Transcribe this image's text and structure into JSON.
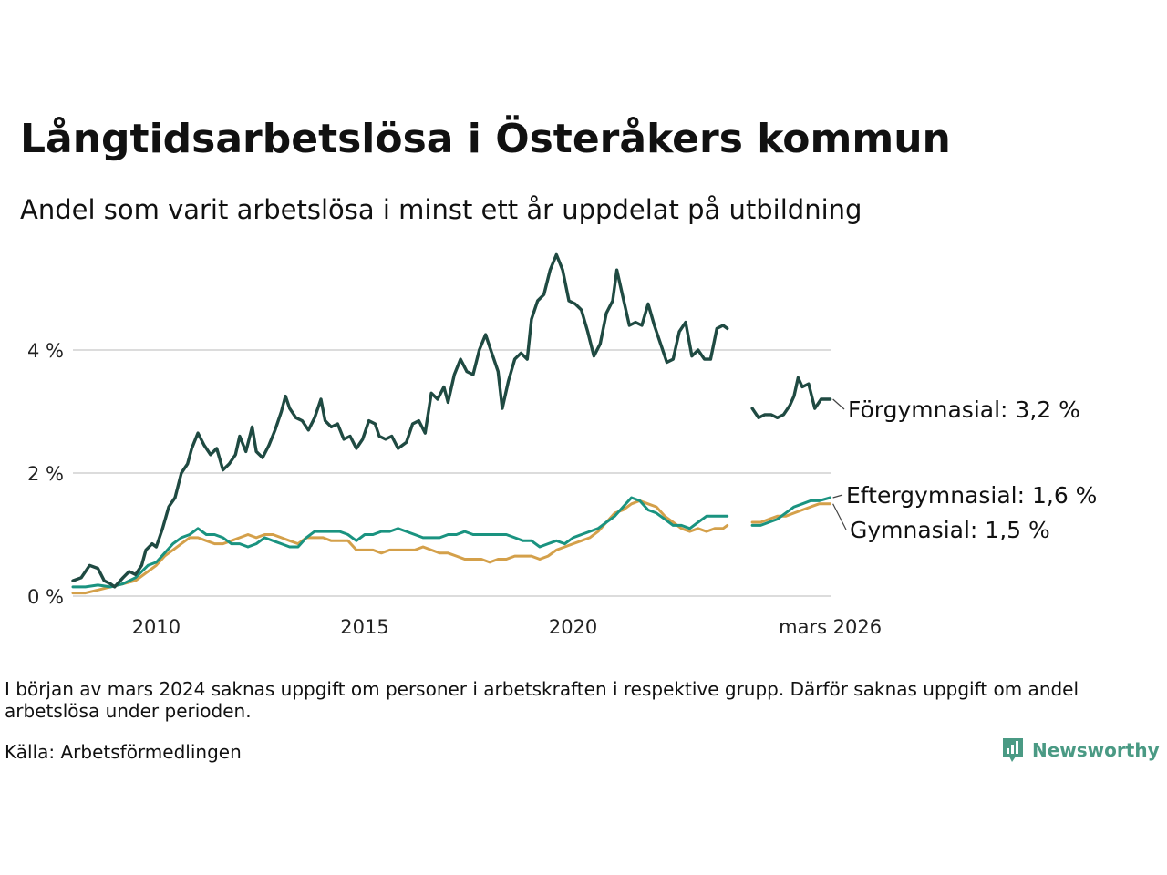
{
  "header": {
    "title": "Långtidsarbetslösa i Österåkers kommun",
    "subtitle": "Andel som varit arbetslösa i minst ett år uppdelat på utbildning"
  },
  "footer": {
    "note": "I början av mars 2024 saknas uppgift om personer i arbetskraften i respektive grupp. Därför saknas uppgift om andel arbetslösa under perioden.",
    "source": "Källa: Arbetsförmedlingen",
    "brand": "Newsworthy"
  },
  "colors": {
    "forgymnasial": "#1f4a42",
    "eftergymnasial": "#1a9380",
    "gymnasial": "#d4a04a",
    "grid": "#dcdcdc",
    "brand": "#4a9a84"
  },
  "chart_data": {
    "type": "line",
    "title": "Långtidsarbetslösa i Österåkers kommun",
    "xlabel": "",
    "ylabel": "",
    "xlim": [
      2008.0,
      2026.2
    ],
    "ylim": [
      0,
      5.6
    ],
    "y_ticks": [
      0,
      2,
      4
    ],
    "y_tick_labels": [
      "0 %",
      "2 %",
      "4 %"
    ],
    "x_ticks": [
      2010,
      2015,
      2020,
      2026.17
    ],
    "x_tick_labels": [
      "2010",
      "2015",
      "2020",
      "mars 2026"
    ],
    "grid": true,
    "gap": [
      2023.75,
      2024.3
    ],
    "series": [
      {
        "name": "Förgymnasial",
        "end_label": "Förgymnasial: 3,2 %",
        "color_key": "forgymnasial",
        "points": [
          [
            2008.0,
            0.25
          ],
          [
            2008.2,
            0.3
          ],
          [
            2008.4,
            0.5
          ],
          [
            2008.6,
            0.45
          ],
          [
            2008.75,
            0.25
          ],
          [
            2008.9,
            0.2
          ],
          [
            2009.0,
            0.15
          ],
          [
            2009.2,
            0.3
          ],
          [
            2009.35,
            0.4
          ],
          [
            2009.5,
            0.35
          ],
          [
            2009.65,
            0.5
          ],
          [
            2009.75,
            0.75
          ],
          [
            2009.9,
            0.85
          ],
          [
            2010.0,
            0.8
          ],
          [
            2010.15,
            1.1
          ],
          [
            2010.3,
            1.45
          ],
          [
            2010.45,
            1.6
          ],
          [
            2010.6,
            2.0
          ],
          [
            2010.75,
            2.15
          ],
          [
            2010.85,
            2.4
          ],
          [
            2011.0,
            2.65
          ],
          [
            2011.15,
            2.45
          ],
          [
            2011.3,
            2.3
          ],
          [
            2011.45,
            2.4
          ],
          [
            2011.6,
            2.05
          ],
          [
            2011.75,
            2.15
          ],
          [
            2011.9,
            2.3
          ],
          [
            2012.0,
            2.6
          ],
          [
            2012.15,
            2.35
          ],
          [
            2012.3,
            2.75
          ],
          [
            2012.4,
            2.35
          ],
          [
            2012.55,
            2.25
          ],
          [
            2012.7,
            2.45
          ],
          [
            2012.85,
            2.7
          ],
          [
            2013.0,
            3.0
          ],
          [
            2013.1,
            3.25
          ],
          [
            2013.2,
            3.05
          ],
          [
            2013.35,
            2.9
          ],
          [
            2013.5,
            2.85
          ],
          [
            2013.65,
            2.7
          ],
          [
            2013.8,
            2.9
          ],
          [
            2013.95,
            3.2
          ],
          [
            2014.05,
            2.85
          ],
          [
            2014.2,
            2.75
          ],
          [
            2014.35,
            2.8
          ],
          [
            2014.5,
            2.55
          ],
          [
            2014.65,
            2.6
          ],
          [
            2014.8,
            2.4
          ],
          [
            2014.95,
            2.55
          ],
          [
            2015.1,
            2.85
          ],
          [
            2015.25,
            2.8
          ],
          [
            2015.35,
            2.6
          ],
          [
            2015.5,
            2.55
          ],
          [
            2015.65,
            2.6
          ],
          [
            2015.8,
            2.4
          ],
          [
            2016.0,
            2.5
          ],
          [
            2016.15,
            2.8
          ],
          [
            2016.3,
            2.85
          ],
          [
            2016.45,
            2.65
          ],
          [
            2016.6,
            3.3
          ],
          [
            2016.75,
            3.2
          ],
          [
            2016.9,
            3.4
          ],
          [
            2017.0,
            3.15
          ],
          [
            2017.15,
            3.6
          ],
          [
            2017.3,
            3.85
          ],
          [
            2017.45,
            3.65
          ],
          [
            2017.6,
            3.6
          ],
          [
            2017.75,
            4.0
          ],
          [
            2017.9,
            4.25
          ],
          [
            2018.0,
            4.05
          ],
          [
            2018.1,
            3.85
          ],
          [
            2018.2,
            3.65
          ],
          [
            2018.3,
            3.05
          ],
          [
            2018.45,
            3.5
          ],
          [
            2018.6,
            3.85
          ],
          [
            2018.75,
            3.95
          ],
          [
            2018.9,
            3.85
          ],
          [
            2019.0,
            4.5
          ],
          [
            2019.15,
            4.8
          ],
          [
            2019.3,
            4.9
          ],
          [
            2019.45,
            5.3
          ],
          [
            2019.6,
            5.55
          ],
          [
            2019.75,
            5.3
          ],
          [
            2019.9,
            4.8
          ],
          [
            2020.05,
            4.75
          ],
          [
            2020.2,
            4.65
          ],
          [
            2020.35,
            4.3
          ],
          [
            2020.5,
            3.9
          ],
          [
            2020.65,
            4.1
          ],
          [
            2020.8,
            4.6
          ],
          [
            2020.95,
            4.8
          ],
          [
            2021.05,
            5.3
          ],
          [
            2021.2,
            4.85
          ],
          [
            2021.35,
            4.4
          ],
          [
            2021.5,
            4.45
          ],
          [
            2021.65,
            4.4
          ],
          [
            2021.8,
            4.75
          ],
          [
            2021.95,
            4.4
          ],
          [
            2022.1,
            4.1
          ],
          [
            2022.25,
            3.8
          ],
          [
            2022.4,
            3.85
          ],
          [
            2022.55,
            4.3
          ],
          [
            2022.7,
            4.45
          ],
          [
            2022.85,
            3.9
          ],
          [
            2023.0,
            4.0
          ],
          [
            2023.15,
            3.85
          ],
          [
            2023.3,
            3.85
          ],
          [
            2023.45,
            4.35
          ],
          [
            2023.6,
            4.4
          ],
          [
            2023.7,
            4.35
          ],
          [
            2024.3,
            3.05
          ],
          [
            2024.45,
            2.9
          ],
          [
            2024.6,
            2.95
          ],
          [
            2024.75,
            2.95
          ],
          [
            2024.9,
            2.9
          ],
          [
            2025.05,
            2.95
          ],
          [
            2025.2,
            3.1
          ],
          [
            2025.3,
            3.25
          ],
          [
            2025.4,
            3.55
          ],
          [
            2025.5,
            3.4
          ],
          [
            2025.65,
            3.45
          ],
          [
            2025.8,
            3.05
          ],
          [
            2025.95,
            3.2
          ],
          [
            2026.17,
            3.2
          ]
        ]
      },
      {
        "name": "Eftergymnasial",
        "end_label": "Eftergymnasial: 1,6 %",
        "color_key": "eftergymnasial",
        "points": [
          [
            2008.0,
            0.15
          ],
          [
            2008.3,
            0.15
          ],
          [
            2008.6,
            0.18
          ],
          [
            2008.9,
            0.15
          ],
          [
            2009.2,
            0.2
          ],
          [
            2009.5,
            0.3
          ],
          [
            2009.8,
            0.5
          ],
          [
            2010.0,
            0.55
          ],
          [
            2010.2,
            0.7
          ],
          [
            2010.4,
            0.85
          ],
          [
            2010.6,
            0.95
          ],
          [
            2010.8,
            1.0
          ],
          [
            2011.0,
            1.1
          ],
          [
            2011.2,
            1.0
          ],
          [
            2011.4,
            1.0
          ],
          [
            2011.6,
            0.95
          ],
          [
            2011.8,
            0.85
          ],
          [
            2012.0,
            0.85
          ],
          [
            2012.2,
            0.8
          ],
          [
            2012.4,
            0.85
          ],
          [
            2012.6,
            0.95
          ],
          [
            2012.8,
            0.9
          ],
          [
            2013.0,
            0.85
          ],
          [
            2013.2,
            0.8
          ],
          [
            2013.4,
            0.8
          ],
          [
            2013.6,
            0.95
          ],
          [
            2013.8,
            1.05
          ],
          [
            2014.0,
            1.05
          ],
          [
            2014.2,
            1.05
          ],
          [
            2014.4,
            1.05
          ],
          [
            2014.6,
            1.0
          ],
          [
            2014.8,
            0.9
          ],
          [
            2015.0,
            1.0
          ],
          [
            2015.2,
            1.0
          ],
          [
            2015.4,
            1.05
          ],
          [
            2015.6,
            1.05
          ],
          [
            2015.8,
            1.1
          ],
          [
            2016.0,
            1.05
          ],
          [
            2016.2,
            1.0
          ],
          [
            2016.4,
            0.95
          ],
          [
            2016.6,
            0.95
          ],
          [
            2016.8,
            0.95
          ],
          [
            2017.0,
            1.0
          ],
          [
            2017.2,
            1.0
          ],
          [
            2017.4,
            1.05
          ],
          [
            2017.6,
            1.0
          ],
          [
            2017.8,
            1.0
          ],
          [
            2018.0,
            1.0
          ],
          [
            2018.2,
            1.0
          ],
          [
            2018.4,
            1.0
          ],
          [
            2018.6,
            0.95
          ],
          [
            2018.8,
            0.9
          ],
          [
            2019.0,
            0.9
          ],
          [
            2019.2,
            0.8
          ],
          [
            2019.4,
            0.85
          ],
          [
            2019.6,
            0.9
          ],
          [
            2019.8,
            0.85
          ],
          [
            2020.0,
            0.95
          ],
          [
            2020.2,
            1.0
          ],
          [
            2020.4,
            1.05
          ],
          [
            2020.6,
            1.1
          ],
          [
            2020.8,
            1.2
          ],
          [
            2021.0,
            1.3
          ],
          [
            2021.2,
            1.45
          ],
          [
            2021.4,
            1.6
          ],
          [
            2021.6,
            1.55
          ],
          [
            2021.8,
            1.4
          ],
          [
            2022.0,
            1.35
          ],
          [
            2022.2,
            1.25
          ],
          [
            2022.4,
            1.15
          ],
          [
            2022.6,
            1.15
          ],
          [
            2022.8,
            1.1
          ],
          [
            2023.0,
            1.2
          ],
          [
            2023.2,
            1.3
          ],
          [
            2023.4,
            1.3
          ],
          [
            2023.7,
            1.3
          ],
          [
            2024.3,
            1.15
          ],
          [
            2024.5,
            1.15
          ],
          [
            2024.7,
            1.2
          ],
          [
            2024.9,
            1.25
          ],
          [
            2025.1,
            1.35
          ],
          [
            2025.3,
            1.45
          ],
          [
            2025.5,
            1.5
          ],
          [
            2025.7,
            1.55
          ],
          [
            2025.9,
            1.55
          ],
          [
            2026.17,
            1.6
          ]
        ]
      },
      {
        "name": "Gymnasial",
        "end_label": "Gymnasial: 1,5 %",
        "color_key": "gymnasial",
        "points": [
          [
            2008.0,
            0.05
          ],
          [
            2008.3,
            0.05
          ],
          [
            2008.6,
            0.1
          ],
          [
            2008.9,
            0.15
          ],
          [
            2009.2,
            0.2
          ],
          [
            2009.5,
            0.25
          ],
          [
            2009.8,
            0.4
          ],
          [
            2010.0,
            0.5
          ],
          [
            2010.2,
            0.65
          ],
          [
            2010.4,
            0.75
          ],
          [
            2010.6,
            0.85
          ],
          [
            2010.8,
            0.95
          ],
          [
            2011.0,
            0.95
          ],
          [
            2011.2,
            0.9
          ],
          [
            2011.4,
            0.85
          ],
          [
            2011.6,
            0.85
          ],
          [
            2011.8,
            0.9
          ],
          [
            2012.0,
            0.95
          ],
          [
            2012.2,
            1.0
          ],
          [
            2012.4,
            0.95
          ],
          [
            2012.6,
            1.0
          ],
          [
            2012.8,
            1.0
          ],
          [
            2013.0,
            0.95
          ],
          [
            2013.2,
            0.9
          ],
          [
            2013.4,
            0.85
          ],
          [
            2013.6,
            0.95
          ],
          [
            2013.8,
            0.95
          ],
          [
            2014.0,
            0.95
          ],
          [
            2014.2,
            0.9
          ],
          [
            2014.4,
            0.9
          ],
          [
            2014.6,
            0.9
          ],
          [
            2014.8,
            0.75
          ],
          [
            2015.0,
            0.75
          ],
          [
            2015.2,
            0.75
          ],
          [
            2015.4,
            0.7
          ],
          [
            2015.6,
            0.75
          ],
          [
            2015.8,
            0.75
          ],
          [
            2016.0,
            0.75
          ],
          [
            2016.2,
            0.75
          ],
          [
            2016.4,
            0.8
          ],
          [
            2016.6,
            0.75
          ],
          [
            2016.8,
            0.7
          ],
          [
            2017.0,
            0.7
          ],
          [
            2017.2,
            0.65
          ],
          [
            2017.4,
            0.6
          ],
          [
            2017.6,
            0.6
          ],
          [
            2017.8,
            0.6
          ],
          [
            2018.0,
            0.55
          ],
          [
            2018.2,
            0.6
          ],
          [
            2018.4,
            0.6
          ],
          [
            2018.6,
            0.65
          ],
          [
            2018.8,
            0.65
          ],
          [
            2019.0,
            0.65
          ],
          [
            2019.2,
            0.6
          ],
          [
            2019.4,
            0.65
          ],
          [
            2019.6,
            0.75
          ],
          [
            2019.8,
            0.8
          ],
          [
            2020.0,
            0.85
          ],
          [
            2020.2,
            0.9
          ],
          [
            2020.4,
            0.95
          ],
          [
            2020.6,
            1.05
          ],
          [
            2020.8,
            1.2
          ],
          [
            2021.0,
            1.35
          ],
          [
            2021.2,
            1.4
          ],
          [
            2021.4,
            1.5
          ],
          [
            2021.6,
            1.55
          ],
          [
            2021.8,
            1.5
          ],
          [
            2022.0,
            1.45
          ],
          [
            2022.2,
            1.3
          ],
          [
            2022.4,
            1.2
          ],
          [
            2022.6,
            1.1
          ],
          [
            2022.8,
            1.05
          ],
          [
            2023.0,
            1.1
          ],
          [
            2023.2,
            1.05
          ],
          [
            2023.4,
            1.1
          ],
          [
            2023.6,
            1.1
          ],
          [
            2023.7,
            1.15
          ],
          [
            2024.3,
            1.2
          ],
          [
            2024.5,
            1.2
          ],
          [
            2024.7,
            1.25
          ],
          [
            2024.9,
            1.3
          ],
          [
            2025.1,
            1.3
          ],
          [
            2025.3,
            1.35
          ],
          [
            2025.5,
            1.4
          ],
          [
            2025.7,
            1.45
          ],
          [
            2025.9,
            1.5
          ],
          [
            2026.17,
            1.5
          ]
        ]
      }
    ]
  }
}
